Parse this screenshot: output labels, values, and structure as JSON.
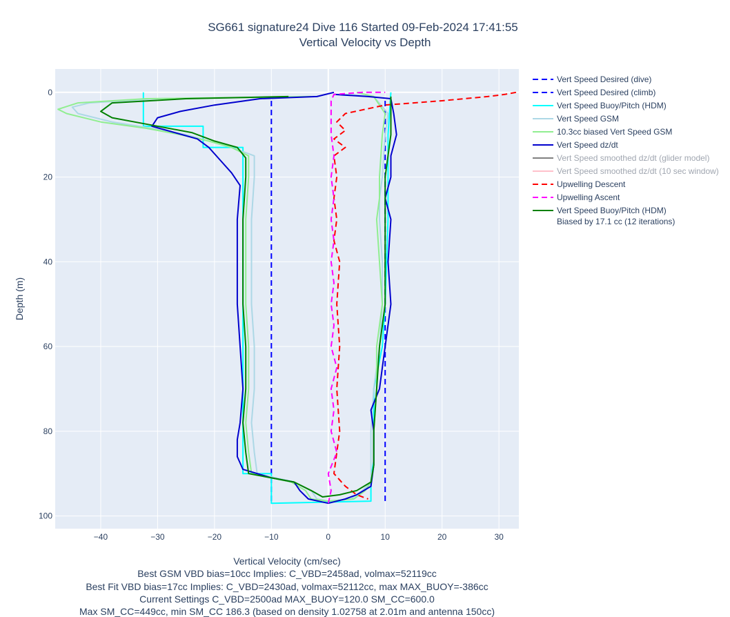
{
  "chart_data": {
    "type": "line",
    "title": [
      "SG661 signature24 Dive 116 Started 09-Feb-2024 17:41:55",
      "Vertical Velocity vs Depth"
    ],
    "xlabel": "Vertical Velocity (cm/sec)",
    "ylabel": "Depth (m)",
    "xlim": [
      -48,
      33.5
    ],
    "ylim": [
      103,
      -5.5
    ],
    "x_ticks": [
      -40,
      -30,
      -20,
      -10,
      0,
      10,
      20,
      30
    ],
    "x_tick_labels": [
      "−40",
      "−30",
      "−20",
      "−10",
      "0",
      "10",
      "20",
      "30"
    ],
    "y_ticks": [
      0,
      20,
      40,
      60,
      80,
      100
    ],
    "y_tick_labels": [
      "0",
      "20",
      "40",
      "60",
      "80",
      "100"
    ],
    "footer": [
      "Best GSM VBD bias=10cc Implies: C_VBD=2458ad, volmax=52119cc",
      "Best Fit VBD bias=17cc Implies: C_VBD=2430ad, volmax=52112cc, max MAX_BUOY=-386cc",
      "Current Settings C_VBD=2500ad MAX_BUOY=120.0 SM_CC=600.0",
      "Max SM_CC=449cc, min SM_CC 186.3 (based on density 1.02758 at 2.01m and antenna 150cc)"
    ],
    "grid": true,
    "legend_position": "right",
    "series": [
      {
        "name": "Vert Speed Desired (dive)",
        "color": "#0000ff",
        "dash": "dash",
        "hidden": false,
        "points": [
          [
            -10,
            2
          ],
          [
            -10,
            97
          ]
        ]
      },
      {
        "name": "Vert Speed Desired (climb)",
        "color": "#0000ff",
        "dash": "dash",
        "hidden": false,
        "points": [
          [
            10,
            2
          ],
          [
            10,
            97
          ]
        ]
      },
      {
        "name": "Vert Speed Buoy/Pitch (HDM)",
        "color": "#00ffff",
        "dash": "solid",
        "hidden": false,
        "points": [
          [
            -32.5,
            0
          ],
          [
            -32.5,
            8
          ],
          [
            -22,
            8
          ],
          [
            -22,
            10
          ],
          [
            -22,
            13
          ],
          [
            -15,
            13
          ],
          [
            -15,
            16
          ],
          [
            -15,
            90
          ],
          [
            -10,
            90
          ],
          [
            -10,
            97
          ],
          [
            7.5,
            96.5
          ],
          [
            7.5,
            91
          ],
          [
            8,
            87
          ],
          [
            8,
            70
          ],
          [
            9.5,
            60
          ],
          [
            10,
            50
          ],
          [
            10.5,
            30
          ],
          [
            10.5,
            10
          ],
          [
            11,
            0
          ]
        ]
      },
      {
        "name": "Vert Speed GSM",
        "color": "#add8e6",
        "dash": "solid",
        "hidden": false,
        "points": [
          [
            -2,
            1
          ],
          [
            -30,
            1.5
          ],
          [
            -42,
            2.5
          ],
          [
            -45,
            3.5
          ],
          [
            -44,
            5
          ],
          [
            -38,
            7
          ],
          [
            -31,
            8.5
          ],
          [
            -25,
            10
          ],
          [
            -21,
            11.5
          ],
          [
            -17,
            13
          ],
          [
            -13,
            15
          ],
          [
            -13,
            20
          ],
          [
            -13.5,
            30
          ],
          [
            -13.5,
            40
          ],
          [
            -13.5,
            50
          ],
          [
            -13,
            60
          ],
          [
            -13,
            70
          ],
          [
            -13.5,
            78
          ],
          [
            -13,
            85
          ],
          [
            -12.5,
            90
          ],
          [
            -6,
            92
          ],
          [
            -3,
            94
          ],
          [
            -2,
            96
          ],
          [
            0,
            96.5
          ],
          [
            4,
            96
          ],
          [
            6,
            94
          ],
          [
            7.5,
            92
          ],
          [
            7.5,
            88
          ],
          [
            7.5,
            80
          ],
          [
            8,
            70
          ],
          [
            9,
            60
          ],
          [
            9.5,
            50
          ],
          [
            9.5,
            40
          ],
          [
            9,
            30
          ],
          [
            9,
            25
          ],
          [
            9.5,
            20
          ],
          [
            10,
            10
          ],
          [
            10.5,
            5
          ],
          [
            8,
            1
          ],
          [
            3,
            0.5
          ]
        ]
      },
      {
        "name": "10.3cc biased Vert Speed GSM",
        "color": "#90ee90",
        "dash": "solid",
        "hidden": false,
        "points": [
          [
            -3,
            1
          ],
          [
            -32,
            1.5
          ],
          [
            -44,
            2.5
          ],
          [
            -47.5,
            4
          ],
          [
            -46,
            5
          ],
          [
            -40,
            7
          ],
          [
            -32,
            8.5
          ],
          [
            -26,
            10
          ],
          [
            -21,
            11.5
          ],
          [
            -17,
            13
          ],
          [
            -14,
            15
          ],
          [
            -14,
            20
          ],
          [
            -14.5,
            30
          ],
          [
            -14.5,
            40
          ],
          [
            -14.5,
            50
          ],
          [
            -14,
            60
          ],
          [
            -14,
            70
          ],
          [
            -14.5,
            78
          ],
          [
            -14,
            85
          ],
          [
            -13.5,
            90
          ],
          [
            -6.5,
            92
          ],
          [
            -4,
            94
          ],
          [
            -3,
            96
          ],
          [
            0,
            96.5
          ],
          [
            4.5,
            96
          ],
          [
            6.5,
            94
          ],
          [
            7.5,
            92
          ],
          [
            8,
            88
          ],
          [
            8,
            80
          ],
          [
            8.5,
            70
          ],
          [
            8.5,
            60
          ],
          [
            9.5,
            50
          ],
          [
            9,
            40
          ],
          [
            8.5,
            30
          ],
          [
            9,
            25
          ],
          [
            9,
            20
          ],
          [
            9.5,
            10
          ],
          [
            10,
            5
          ],
          [
            8,
            1
          ],
          [
            5,
            0
          ]
        ]
      },
      {
        "name": "Vert Speed dz/dt",
        "color": "#0000cd",
        "dash": "solid",
        "hidden": false,
        "points": [
          [
            1,
            0
          ],
          [
            -2,
            1
          ],
          [
            -12,
            1.5
          ],
          [
            -20,
            3
          ],
          [
            -26,
            4.5
          ],
          [
            -30,
            6
          ],
          [
            -31,
            8
          ],
          [
            -27,
            9.5
          ],
          [
            -23,
            11
          ],
          [
            -21,
            13
          ],
          [
            -19,
            16
          ],
          [
            -17,
            19
          ],
          [
            -15.5,
            22
          ],
          [
            -16,
            30
          ],
          [
            -16,
            40
          ],
          [
            -16,
            50
          ],
          [
            -15.5,
            60
          ],
          [
            -15,
            70
          ],
          [
            -15.5,
            78
          ],
          [
            -16,
            82
          ],
          [
            -16,
            86
          ],
          [
            -15,
            89
          ],
          [
            -10,
            91
          ],
          [
            -6,
            92
          ],
          [
            -5,
            94
          ],
          [
            -3.5,
            96
          ],
          [
            0,
            97
          ],
          [
            3,
            96
          ],
          [
            5,
            95
          ],
          [
            7.5,
            93
          ],
          [
            8,
            88
          ],
          [
            8,
            80
          ],
          [
            7.5,
            75
          ],
          [
            9,
            70
          ],
          [
            9.5,
            65
          ],
          [
            10,
            60
          ],
          [
            11,
            50
          ],
          [
            10.5,
            40
          ],
          [
            11,
            30
          ],
          [
            10,
            25
          ],
          [
            11,
            20
          ],
          [
            11,
            15
          ],
          [
            12,
            10
          ],
          [
            11.5,
            5
          ],
          [
            11,
            1.5
          ],
          [
            7,
            1
          ],
          [
            1,
            0.5
          ]
        ]
      },
      {
        "name": "Vert Speed smoothed dz/dt (glider model)",
        "color": "#808080",
        "dash": "solid",
        "hidden": true,
        "points": []
      },
      {
        "name": "Vert Speed smoothed dz/dt (10 sec window)",
        "color": "#ffc0cb",
        "dash": "solid",
        "hidden": true,
        "points": []
      },
      {
        "name": "Upwelling Descent",
        "color": "#ff0000",
        "dash": "dash",
        "hidden": false,
        "points": [
          [
            33,
            0
          ],
          [
            31,
            0.5
          ],
          [
            28,
            1
          ],
          [
            20,
            2
          ],
          [
            10,
            3
          ],
          [
            3,
            5
          ],
          [
            1.5,
            7
          ],
          [
            3,
            9
          ],
          [
            1,
            11
          ],
          [
            3,
            13
          ],
          [
            1,
            15
          ],
          [
            1.5,
            20
          ],
          [
            1,
            25
          ],
          [
            1.5,
            30
          ],
          [
            1,
            35
          ],
          [
            2,
            40
          ],
          [
            1.5,
            50
          ],
          [
            2,
            60
          ],
          [
            1.5,
            70
          ],
          [
            2,
            80
          ],
          [
            1,
            90
          ],
          [
            3,
            93
          ],
          [
            5,
            95
          ],
          [
            7,
            96
          ]
        ]
      },
      {
        "name": "Upwelling Ascent",
        "color": "#ff00ff",
        "dash": "dash",
        "hidden": false,
        "points": [
          [
            0,
            97
          ],
          [
            0.5,
            94
          ],
          [
            0,
            90
          ],
          [
            1.5,
            85
          ],
          [
            0.5,
            80
          ],
          [
            1,
            75
          ],
          [
            0.5,
            70
          ],
          [
            1.5,
            65
          ],
          [
            0.5,
            60
          ],
          [
            1,
            55
          ],
          [
            0.5,
            50
          ],
          [
            1,
            45
          ],
          [
            0.5,
            40
          ],
          [
            1,
            35
          ],
          [
            0.5,
            30
          ],
          [
            1,
            25
          ],
          [
            0.5,
            20
          ],
          [
            1,
            15
          ],
          [
            0.5,
            10
          ],
          [
            0.5,
            5
          ],
          [
            0.5,
            2
          ],
          [
            1,
            0.5
          ],
          [
            6,
            0
          ],
          [
            10,
            0
          ]
        ]
      },
      {
        "name": "Vert Speed Buoy/Pitch (HDM)\nBiased by 17.1 cc (12 iterations)",
        "color": "#008000",
        "dash": "solid",
        "hidden": false,
        "points": [
          [
            -7,
            1
          ],
          [
            -25,
            1.5
          ],
          [
            -38,
            2.5
          ],
          [
            -40,
            4.5
          ],
          [
            -38,
            6
          ],
          [
            -32,
            7.5
          ],
          [
            -24,
            9.5
          ],
          [
            -20,
            11.5
          ],
          [
            -16,
            13
          ],
          [
            -14.5,
            15.5
          ],
          [
            -14.5,
            20
          ],
          [
            -15,
            30
          ],
          [
            -15,
            40
          ],
          [
            -15,
            50
          ],
          [
            -14.5,
            60
          ],
          [
            -14.5,
            70
          ],
          [
            -15,
            78
          ],
          [
            -14.5,
            85
          ],
          [
            -14,
            90
          ],
          [
            -6,
            92
          ],
          [
            -3,
            94
          ],
          [
            -1,
            95.5
          ],
          [
            2,
            95
          ],
          [
            5,
            94
          ],
          [
            7.5,
            92
          ],
          [
            8,
            88
          ],
          [
            8,
            80
          ],
          [
            8.5,
            70
          ],
          [
            9,
            60
          ],
          [
            10,
            50
          ],
          [
            10,
            40
          ],
          [
            10,
            30
          ],
          [
            10,
            20
          ],
          [
            11,
            10
          ],
          [
            11,
            5
          ],
          [
            11,
            1
          ]
        ]
      }
    ]
  }
}
